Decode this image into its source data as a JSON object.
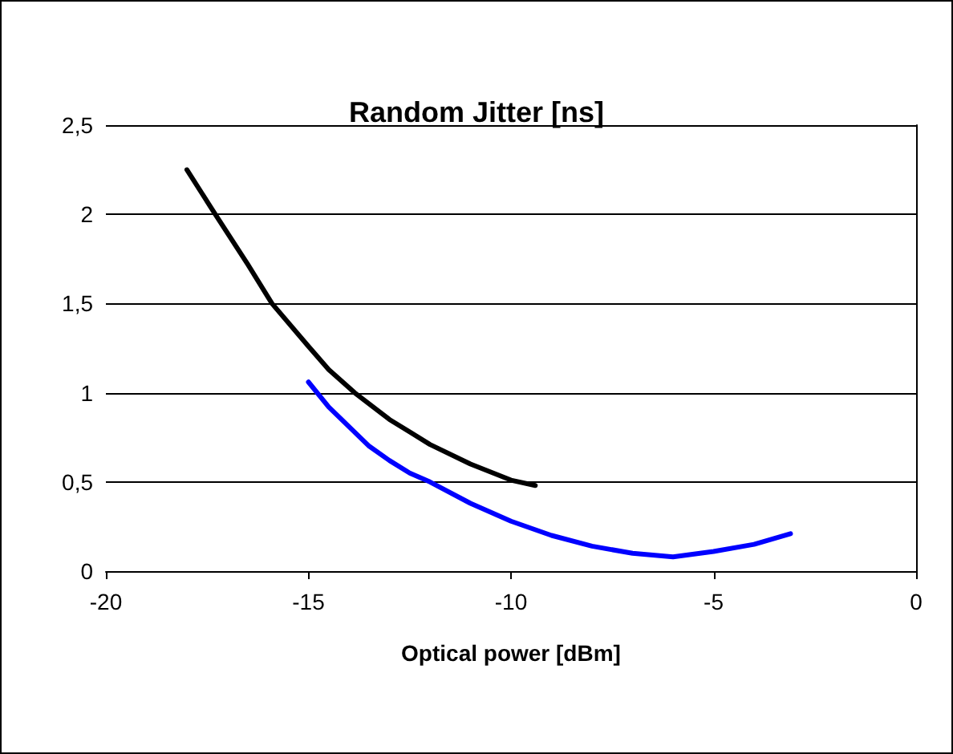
{
  "chart_data": {
    "type": "line",
    "title": "Random Jitter [ns]",
    "xlabel": "Optical power [dBm]",
    "xlim": [
      -20,
      0
    ],
    "xticks": [
      -20,
      -15,
      -10,
      -5,
      0
    ],
    "ylim": [
      0,
      2.5
    ],
    "yticks": [
      0,
      {
        "value": 0.5,
        "label": "0,5"
      },
      1,
      {
        "value": 1.5,
        "label": "1,5"
      },
      2,
      {
        "value": 2.5,
        "label": "2,5"
      }
    ],
    "grid": "y",
    "marker": "none",
    "line_style": "solid",
    "series": [
      {
        "color": "#000000",
        "x": [
          -18,
          -17.3,
          -16.5,
          -15.9,
          -15,
          -14.5,
          -13.86,
          -13,
          -12,
          -11,
          -10,
          -9.4
        ],
        "values": [
          2.25,
          2.0,
          1.72,
          1.5,
          1.26,
          1.13,
          1.0,
          0.85,
          0.71,
          0.6,
          0.51,
          0.48
        ]
      },
      {
        "color": "#0000ff",
        "x": [
          -15,
          -14.5,
          -14,
          -13.5,
          -13,
          -12.5,
          -12,
          -11,
          -10,
          -9,
          -8,
          -7,
          -6,
          -5,
          -4,
          -3.1
        ],
        "values": [
          1.06,
          0.92,
          0.81,
          0.7,
          0.62,
          0.55,
          0.5,
          0.38,
          0.28,
          0.2,
          0.14,
          0.1,
          0.08,
          0.11,
          0.15,
          0.21
        ]
      }
    ]
  }
}
